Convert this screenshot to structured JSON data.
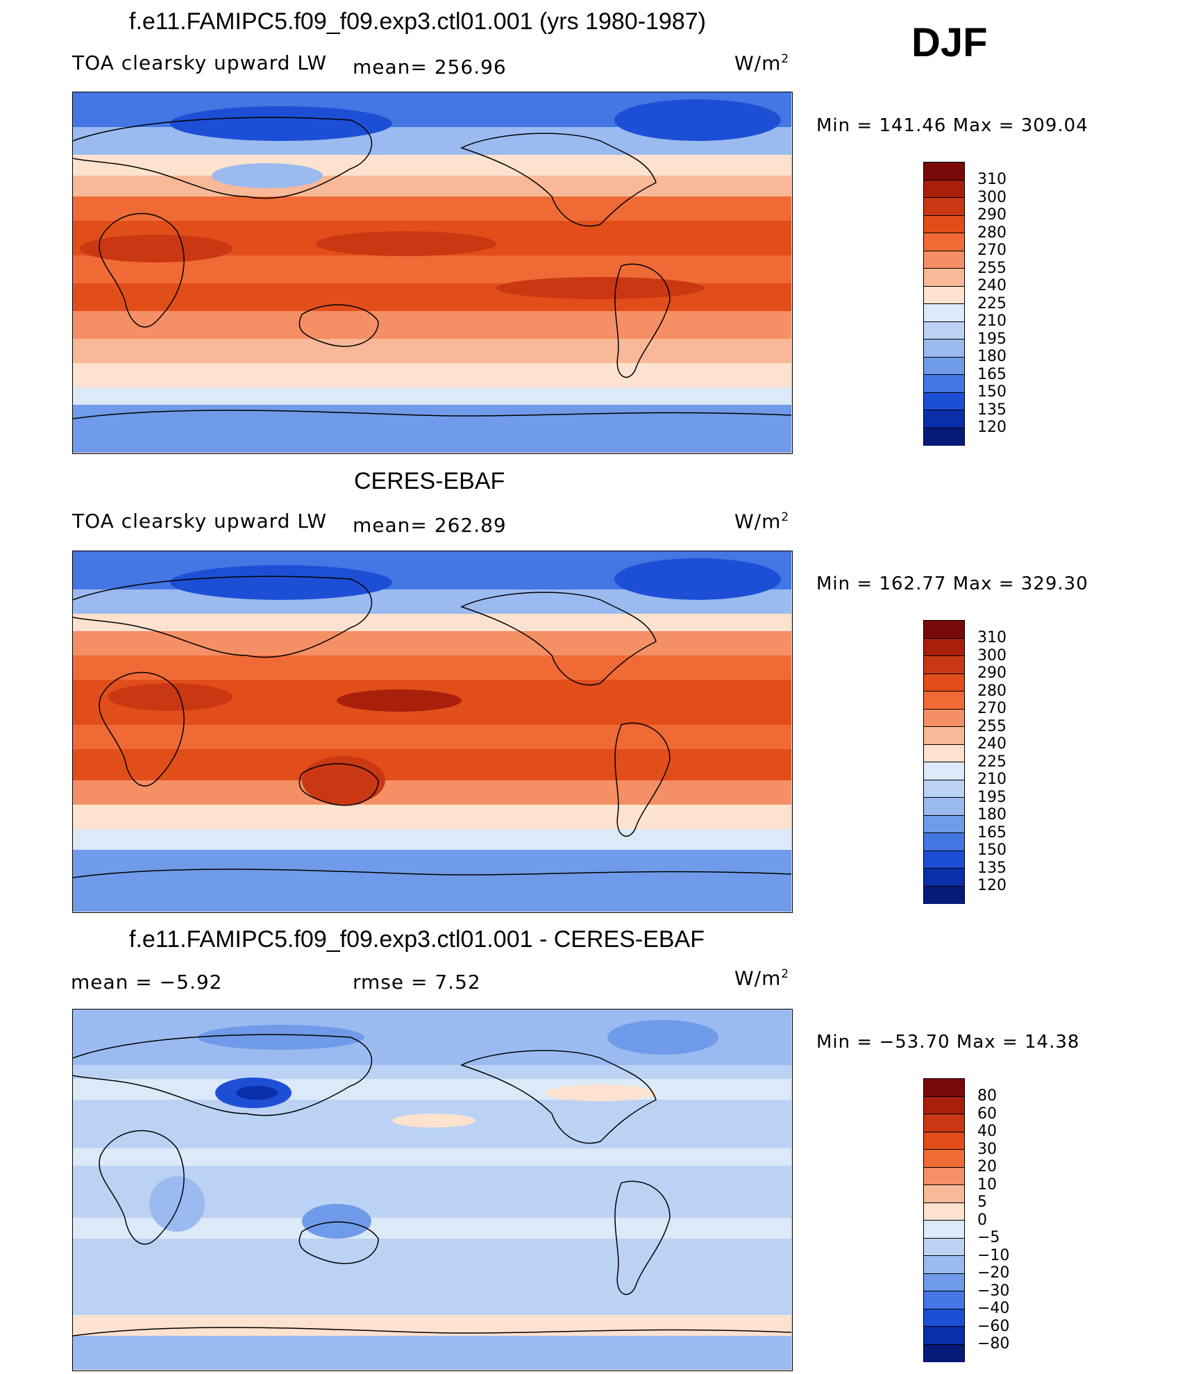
{
  "season": "DJF",
  "units_base": "W/m",
  "units_sup": "2",
  "panels": [
    {
      "title": "f.e11.FAMIPC5.f09_f09.exp3.ctl01.001 (yrs 1980-1987)",
      "subtitle": "TOA clearsky upward LW",
      "mean_text": "mean=  256.96",
      "minmax": "Min  =  141.46  Max  =  309.04",
      "colorbar_labels": [
        "310",
        "300",
        "290",
        "280",
        "270",
        "255",
        "240",
        "225",
        "210",
        "195",
        "180",
        "165",
        "150",
        "135",
        "120"
      ]
    },
    {
      "title": "CERES-EBAF",
      "subtitle": "TOA clearsky upward LW",
      "mean_text": "mean=  262.89",
      "minmax": "Min  =  162.77  Max  =  329.30",
      "colorbar_labels": [
        "310",
        "300",
        "290",
        "280",
        "270",
        "255",
        "240",
        "225",
        "210",
        "195",
        "180",
        "165",
        "150",
        "135",
        "120"
      ]
    },
    {
      "title": "f.e11.FAMIPC5.f09_f09.exp3.ctl01.001 - CERES-EBAF",
      "mean_text": "mean  =    −5.92",
      "rmse_text": "rmse  =     7.52",
      "minmax": "Min  =  −53.70  Max  =    14.38",
      "colorbar_labels": [
        "80",
        "60",
        "40",
        "30",
        "20",
        "10",
        "5",
        "0",
        "−5",
        "−10",
        "−20",
        "−30",
        "−40",
        "−60",
        "−80"
      ]
    }
  ],
  "colors": {
    "abs_scale": [
      "#7a0a0a",
      "#a81f0c",
      "#c93812",
      "#e24e1a",
      "#f06a35",
      "#f58f65",
      "#f9b998",
      "#fde2cf",
      "#dce9f8",
      "#bcd2f4",
      "#9bbbf0",
      "#6f9bea",
      "#4476e4",
      "#1d4fd6",
      "#0b2fa8",
      "#061a78"
    ],
    "diff_scale": [
      "#7a0a0a",
      "#a81f0c",
      "#c93812",
      "#e24e1a",
      "#f06a35",
      "#f58f65",
      "#f9b998",
      "#fde2cf",
      "#dce9f8",
      "#bcd2f4",
      "#9bbbf0",
      "#6f9bea",
      "#4476e4",
      "#1d4fd6",
      "#0b2fa8",
      "#061a78"
    ]
  }
}
